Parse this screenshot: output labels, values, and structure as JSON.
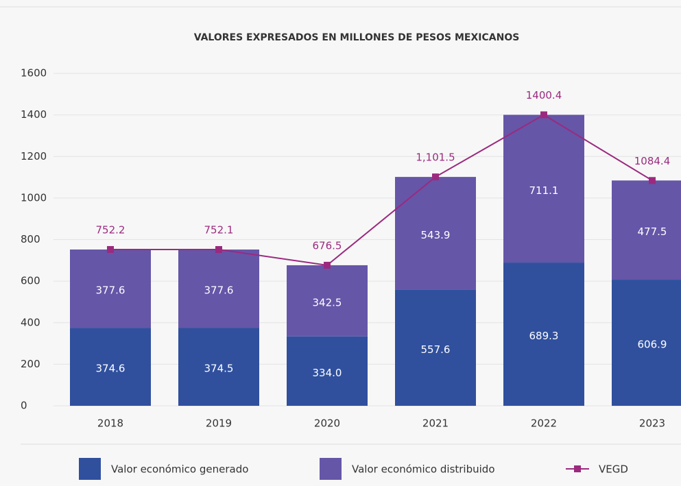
{
  "chart_data": {
    "type": "stacked-bar-line",
    "title": "VALORES EXPRESADOS EN MILLONES DE PESOS MEXICANOS",
    "categories": [
      "2018",
      "2019",
      "2020",
      "2021",
      "2022",
      "2023"
    ],
    "ylim": [
      0,
      1600
    ],
    "yticks": [
      0,
      200,
      400,
      600,
      800,
      1000,
      1200,
      1400,
      1600
    ],
    "grid": true,
    "legend": "bottom",
    "series": [
      {
        "name": "Valor económico generado",
        "color": "#30509e",
        "kind": "bar",
        "values": [
          374.6,
          374.5,
          334.0,
          557.6,
          689.3,
          606.9
        ],
        "value_labels": [
          "374.6",
          "374.5",
          "334.0",
          "557.6",
          "689.3",
          "606.9"
        ]
      },
      {
        "name": "Valor económico distribuido",
        "color": "#6556a8",
        "kind": "bar",
        "values": [
          377.6,
          377.6,
          342.5,
          543.9,
          711.1,
          477.5
        ],
        "value_labels": [
          "377.6",
          "377.6",
          "342.5",
          "543.9",
          "711.1",
          "477.5"
        ]
      },
      {
        "name": "VEGD",
        "color": "#9b2a7f",
        "kind": "line",
        "values": [
          752.2,
          752.1,
          676.5,
          1101.5,
          1400.4,
          1084.4
        ],
        "value_labels": [
          "752.2",
          "752.1",
          "676.5",
          "1,101.5",
          "1400.4",
          "1084.4"
        ]
      }
    ]
  }
}
